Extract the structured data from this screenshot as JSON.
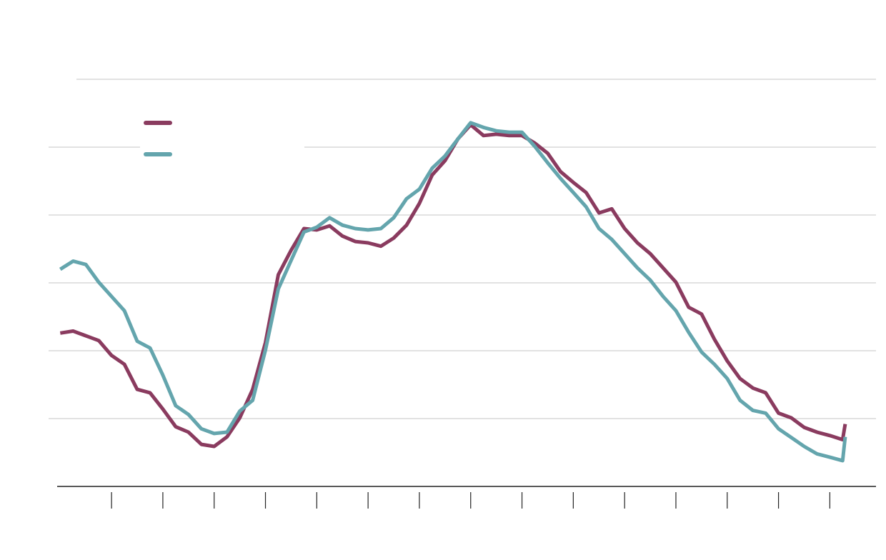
{
  "chart_data": {
    "type": "line",
    "x": [
      0,
      0.25,
      0.5,
      0.75,
      1,
      1.25,
      1.5,
      1.75,
      2,
      2.25,
      2.5,
      2.75,
      3,
      3.25,
      3.5,
      3.75,
      4,
      4.25,
      4.5,
      4.75,
      5,
      5.25,
      5.5,
      5.75,
      6,
      6.25,
      6.5,
      6.75,
      7,
      7.25,
      7.5,
      7.75,
      8,
      8.25,
      8.5,
      8.75,
      9,
      9.25,
      9.5,
      9.75,
      10,
      10.25,
      10.5,
      10.75,
      11,
      11.25,
      11.5,
      11.75,
      12,
      12.25,
      12.5,
      12.75,
      13,
      13.25,
      13.5,
      13.75,
      14,
      14.25,
      14.5,
      14.75,
      15,
      15.25,
      15.3
    ],
    "series": [
      {
        "color": "#8a3b5f",
        "values": [
          2.26,
          2.29,
          2.22,
          2.15,
          1.93,
          1.8,
          1.43,
          1.38,
          1.14,
          0.88,
          0.8,
          0.62,
          0.59,
          0.73,
          1.01,
          1.43,
          2.12,
          3.12,
          3.48,
          3.8,
          3.78,
          3.84,
          3.69,
          3.61,
          3.59,
          3.54,
          3.66,
          3.85,
          4.17,
          4.59,
          4.8,
          5.12,
          5.33,
          5.17,
          5.19,
          5.17,
          5.17,
          5.06,
          4.91,
          4.64,
          4.48,
          4.33,
          4.03,
          4.09,
          3.8,
          3.59,
          3.43,
          3.22,
          3.01,
          2.64,
          2.54,
          2.17,
          1.85,
          1.59,
          1.45,
          1.38,
          1.08,
          1.01,
          0.87,
          0.8,
          0.75,
          0.69,
          0.92
        ]
      },
      {
        "color": "#64a5ad",
        "values": [
          3.2,
          3.32,
          3.27,
          3.01,
          2.8,
          2.59,
          2.14,
          2.04,
          1.64,
          1.19,
          1.06,
          0.85,
          0.78,
          0.8,
          1.11,
          1.27,
          2.01,
          2.91,
          3.33,
          3.75,
          3.82,
          3.96,
          3.85,
          3.8,
          3.78,
          3.8,
          3.96,
          4.24,
          4.38,
          4.69,
          4.87,
          5.12,
          5.36,
          5.29,
          5.24,
          5.22,
          5.22,
          5.01,
          4.77,
          4.54,
          4.33,
          4.12,
          3.8,
          3.64,
          3.43,
          3.22,
          3.04,
          2.8,
          2.59,
          2.27,
          1.98,
          1.8,
          1.59,
          1.27,
          1.12,
          1.08,
          0.85,
          0.72,
          0.59,
          0.48,
          0.43,
          0.38,
          0.73
        ]
      }
    ],
    "xlim": [
      -0.06,
      15.9
    ],
    "xticks": [
      1,
      2,
      3,
      4,
      5,
      6,
      7,
      8,
      9,
      10,
      11,
      12,
      13,
      14,
      15
    ],
    "ylim": [
      0,
      6
    ],
    "yticks": [
      1,
      2,
      3,
      4,
      5,
      6
    ],
    "grid": true,
    "legend": "upper left"
  }
}
